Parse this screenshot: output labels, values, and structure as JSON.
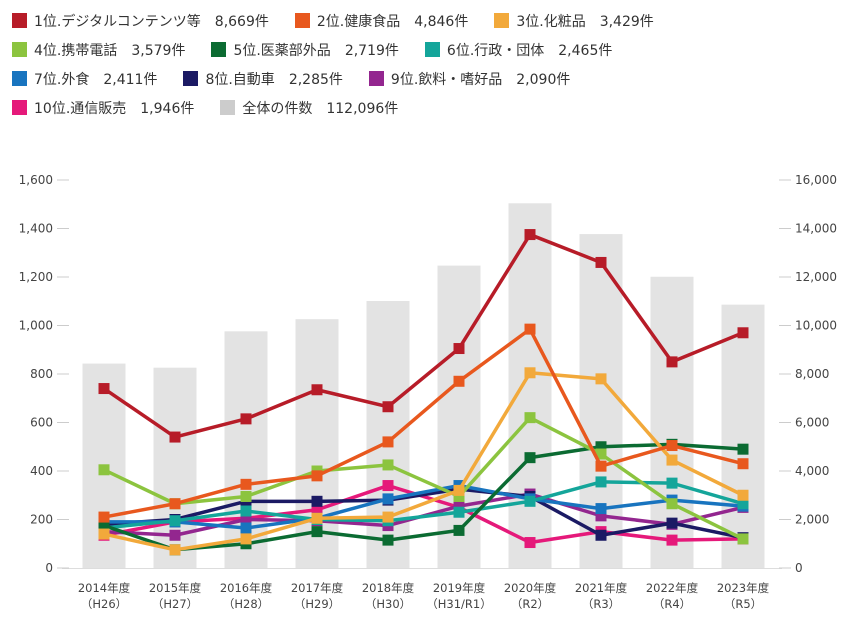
{
  "chart_data": {
    "type": "line",
    "secondary_type": "bar",
    "title": "",
    "categories": [
      {
        "year": "2014年度",
        "era": "（H26）"
      },
      {
        "year": "2015年度",
        "era": "（H27）"
      },
      {
        "year": "2016年度",
        "era": "（H28）"
      },
      {
        "year": "2017年度",
        "era": "（H29）"
      },
      {
        "year": "2018年度",
        "era": "（H30）"
      },
      {
        "year": "2019年度",
        "era": "（H31/R1）"
      },
      {
        "year": "2020年度",
        "era": "（R2）"
      },
      {
        "year": "2021年度",
        "era": "（R3）"
      },
      {
        "year": "2022年度",
        "era": "（R4）"
      },
      {
        "year": "2023年度",
        "era": "（R5）"
      }
    ],
    "left_axis": {
      "min": 0,
      "max": 1600,
      "ticks": [
        "0",
        "200",
        "400",
        "600",
        "800",
        "1,000",
        "1,200",
        "1,400",
        "1,600"
      ]
    },
    "right_axis": {
      "min": 0,
      "max": 16000,
      "ticks": [
        "0",
        "2,000",
        "4,000",
        "6,000",
        "8,000",
        "10,000",
        "12,000",
        "14,000",
        "16,000"
      ]
    },
    "grid": false,
    "legend_position": "top",
    "bars": {
      "name": "全体の件数",
      "count": "112,096件",
      "color": "#cccccc",
      "bar_color": "#e3e3e3",
      "axis": "right",
      "values": [
        8430,
        8260,
        9760,
        10260,
        11010,
        12470,
        15040,
        13770,
        12010,
        10860
      ]
    },
    "series": [
      {
        "name": "1位.デジタルコンテンツ等",
        "count": "8,669件",
        "color": "#b71c28",
        "values": [
          740,
          540,
          615,
          735,
          665,
          905,
          1375,
          1260,
          850,
          970
        ]
      },
      {
        "name": "2位.健康食品",
        "count": "4,846件",
        "color": "#e8581e",
        "values": [
          210,
          265,
          345,
          380,
          520,
          770,
          985,
          420,
          505,
          430
        ]
      },
      {
        "name": "3位.化粧品",
        "count": "3,429件",
        "color": "#f2a93b",
        "values": [
          140,
          75,
          120,
          205,
          210,
          320,
          805,
          780,
          445,
          300
        ]
      },
      {
        "name": "4位.携帯電話",
        "count": "3,579件",
        "color": "#8cc43f",
        "values": [
          405,
          265,
          295,
          400,
          425,
          295,
          620,
          470,
          265,
          120
        ]
      },
      {
        "name": "5位.医薬部外品",
        "count": "2,719件",
        "color": "#0b6b32",
        "values": [
          175,
          75,
          100,
          150,
          115,
          155,
          455,
          500,
          510,
          490
        ]
      },
      {
        "name": "6位.行政・団体",
        "count": "2,465件",
        "color": "#14a59a",
        "values": [
          165,
          195,
          235,
          200,
          195,
          230,
          275,
          355,
          350,
          265
        ]
      },
      {
        "name": "7位.外食",
        "count": "2,411件",
        "color": "#1874bf",
        "values": [
          190,
          190,
          165,
          205,
          285,
          340,
          285,
          245,
          280,
          255
        ]
      },
      {
        "name": "8位.自動車",
        "count": "2,285件",
        "color": "#1b1a64",
        "values": [
          180,
          200,
          275,
          275,
          280,
          325,
          295,
          135,
          185,
          125
        ]
      },
      {
        "name": "9位.飲料・嗜好品",
        "count": "2,090件",
        "color": "#93268f",
        "values": [
          150,
          135,
          200,
          195,
          175,
          255,
          305,
          215,
          180,
          250
        ]
      },
      {
        "name": "10位.通信販売",
        "count": "1,946件",
        "color": "#e5197a",
        "values": [
          135,
          190,
          205,
          240,
          340,
          250,
          105,
          150,
          115,
          120
        ]
      }
    ]
  }
}
